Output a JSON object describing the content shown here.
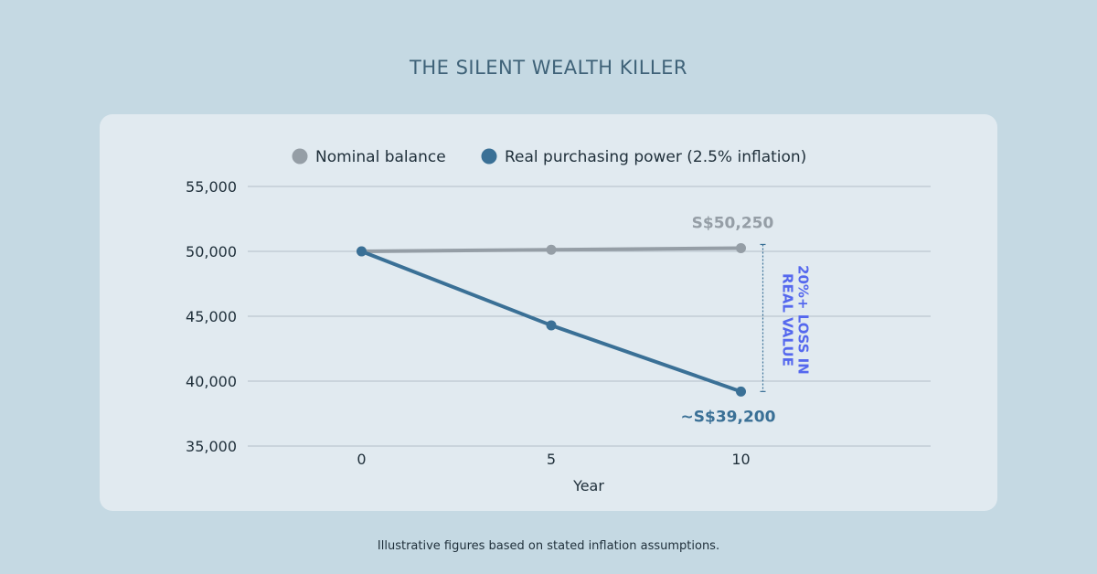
{
  "page": {
    "title": "THE SILENT WEALTH KILLER",
    "footnote": "Illustrative figures based on stated inflation assumptions."
  },
  "colors": {
    "background": "#c5d9e3",
    "card": "#e1eaf0",
    "nominal": "#959ea6",
    "real": "#3a7096",
    "annotation": "#5568ee",
    "gridline": "#b3bec7",
    "text": "#1f2f3a"
  },
  "chart_data": {
    "type": "line",
    "title": "",
    "xlabel": "Year",
    "ylabel": "",
    "x": [
      0,
      5,
      10
    ],
    "x_ticks": [
      "0",
      "5",
      "10"
    ],
    "xlim": [
      -3,
      15
    ],
    "ylim": [
      35000,
      55000
    ],
    "y_ticks": [
      "35,000",
      "40,000",
      "45,000",
      "50,000",
      "55,000"
    ],
    "y_tick_values": [
      35000,
      40000,
      45000,
      50000,
      55000
    ],
    "grid": true,
    "legend_position": "top-center",
    "series": [
      {
        "name": "Nominal balance",
        "color": "#959ea6",
        "values": [
          50000,
          50125,
          50250
        ],
        "end_label": "S$50,250"
      },
      {
        "name": "Real purchasing power (2.5% inflation)",
        "color": "#3a7096",
        "values": [
          50000,
          44300,
          39200
        ],
        "end_label": "~S$39,200"
      }
    ],
    "annotations": [
      {
        "text_line1": "20%+ LOSS IN",
        "text_line2": "REAL VALUE",
        "x": 10,
        "y_from": 50250,
        "y_to": 39200
      }
    ]
  }
}
